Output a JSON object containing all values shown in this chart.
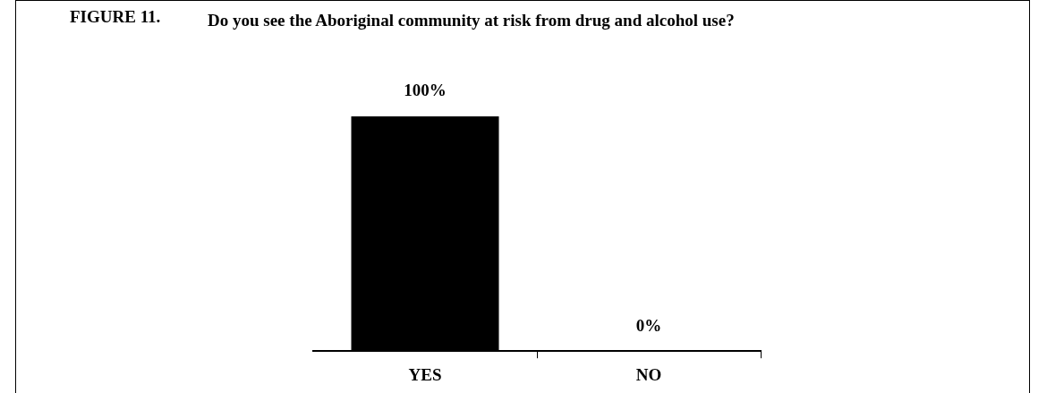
{
  "chart_data": {
    "type": "bar",
    "title": "FIGURE 11.",
    "subtitle": "Do you see the Aboriginal community at risk from drug and alcohol use?",
    "categories": [
      "YES",
      "NO"
    ],
    "values": [
      100,
      0
    ],
    "color": "#000000",
    "value_labels": [
      "100%",
      "0%"
    ],
    "grid": false,
    "legend": false
  }
}
